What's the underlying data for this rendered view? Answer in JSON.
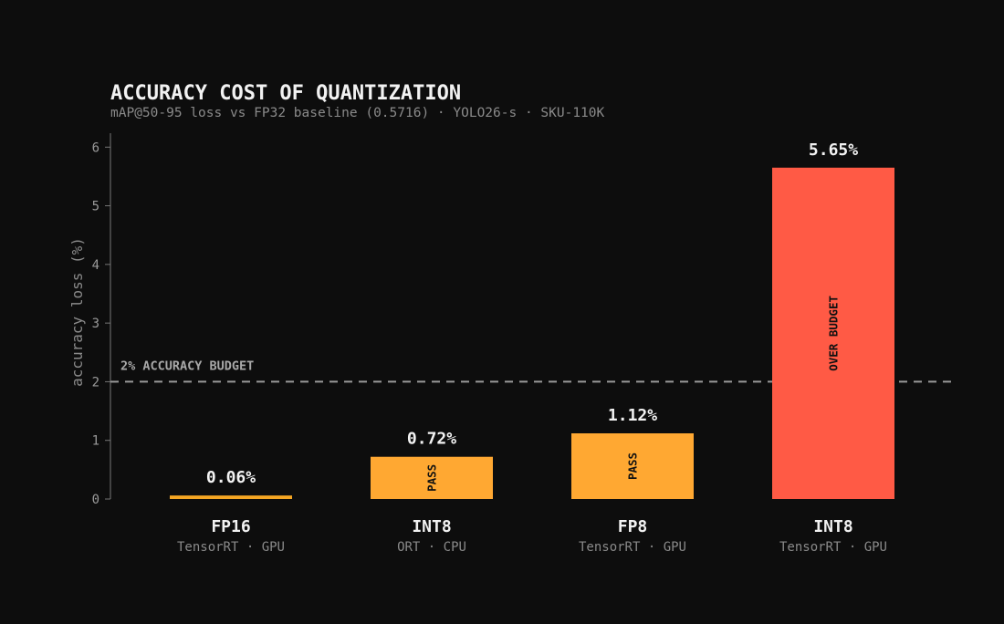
{
  "chart_data": {
    "type": "bar",
    "title": "ACCURACY COST OF QUANTIZATION",
    "subtitle": "mAP@50-95 loss vs FP32 baseline (0.5716) · YOLO26-s · SKU-110K",
    "ylabel": "accuracy loss (%)",
    "xlabel": "",
    "ylim": [
      0,
      6.3
    ],
    "yticks": [
      0,
      1,
      2,
      3,
      4,
      5,
      6
    ],
    "grid": false,
    "categories": [
      "FP16",
      "INT8",
      "FP8",
      "INT8"
    ],
    "sublabels": [
      "TensorRT · GPU",
      "ORT · CPU",
      "TensorRT · GPU",
      "TensorRT · GPU"
    ],
    "values": [
      0.06,
      0.72,
      1.12,
      5.65
    ],
    "value_labels": [
      "0.06%",
      "0.72%",
      "1.12%",
      "5.65%"
    ],
    "status_labels": [
      "",
      "PASS",
      "PASS",
      "OVER BUDGET"
    ],
    "bar_colors": [
      "#f5a623",
      "#ffa832",
      "#ffa832",
      "#ff5a45"
    ],
    "threshold": {
      "value": 2,
      "label": "2% ACCURACY BUDGET",
      "color": "#9a9a9a"
    }
  }
}
